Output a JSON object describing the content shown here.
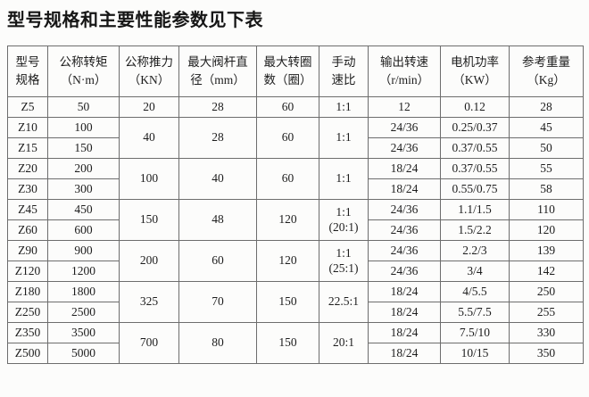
{
  "title": "型号规格和主要性能参数见下表",
  "table": {
    "columns": [
      {
        "label": "型号\n规格"
      },
      {
        "label": "公称转矩\n（N·m）"
      },
      {
        "label": "公称推力\n（KN）"
      },
      {
        "label": "最大阀杆直\n径（mm）"
      },
      {
        "label": "最大转圈\n数（圈）"
      },
      {
        "label": "手动\n速比"
      },
      {
        "label": "输出转速\n（r/min）"
      },
      {
        "label": "电机功率\n（KW）"
      },
      {
        "label": "参考重量\n（Kg）"
      }
    ],
    "rows": [
      {
        "cells": [
          {
            "t": "Z5"
          },
          {
            "t": "50"
          },
          {
            "t": "20"
          },
          {
            "t": "28"
          },
          {
            "t": "60"
          },
          {
            "t": "1:1"
          },
          {
            "t": "12"
          },
          {
            "t": "0.12"
          },
          {
            "t": "28"
          }
        ]
      },
      {
        "cells": [
          {
            "t": "Z10"
          },
          {
            "t": "100"
          },
          {
            "t": "40",
            "rs": 2
          },
          {
            "t": "28",
            "rs": 2
          },
          {
            "t": "60",
            "rs": 2
          },
          {
            "t": "1:1",
            "rs": 2
          },
          {
            "t": "24/36"
          },
          {
            "t": "0.25/0.37"
          },
          {
            "t": "45"
          }
        ]
      },
      {
        "cells": [
          {
            "t": "Z15"
          },
          {
            "t": "150"
          },
          {
            "t": "24/36"
          },
          {
            "t": "0.37/0.55"
          },
          {
            "t": "50"
          }
        ]
      },
      {
        "cells": [
          {
            "t": "Z20"
          },
          {
            "t": "200"
          },
          {
            "t": "100",
            "rs": 2
          },
          {
            "t": "40",
            "rs": 2
          },
          {
            "t": "60",
            "rs": 2
          },
          {
            "t": "1:1",
            "rs": 2
          },
          {
            "t": "18/24"
          },
          {
            "t": "0.37/0.55"
          },
          {
            "t": "55"
          }
        ]
      },
      {
        "cells": [
          {
            "t": "Z30"
          },
          {
            "t": "300"
          },
          {
            "t": "18/24"
          },
          {
            "t": "0.55/0.75"
          },
          {
            "t": "58"
          }
        ]
      },
      {
        "cells": [
          {
            "t": "Z45"
          },
          {
            "t": "450"
          },
          {
            "t": "150",
            "rs": 2
          },
          {
            "t": "48",
            "rs": 2
          },
          {
            "t": "120",
            "rs": 2
          },
          {
            "t": "1:1\n(20:1)",
            "rs": 2
          },
          {
            "t": "24/36"
          },
          {
            "t": "1.1/1.5"
          },
          {
            "t": "110"
          }
        ]
      },
      {
        "cells": [
          {
            "t": "Z60"
          },
          {
            "t": "600"
          },
          {
            "t": "24/36"
          },
          {
            "t": "1.5/2.2"
          },
          {
            "t": "120"
          }
        ]
      },
      {
        "cells": [
          {
            "t": "Z90"
          },
          {
            "t": "900"
          },
          {
            "t": "200",
            "rs": 2
          },
          {
            "t": "60",
            "rs": 2
          },
          {
            "t": "120",
            "rs": 2
          },
          {
            "t": "1:1\n(25:1)",
            "rs": 2
          },
          {
            "t": "24/36"
          },
          {
            "t": "2.2/3"
          },
          {
            "t": "139"
          }
        ]
      },
      {
        "cells": [
          {
            "t": "Z120"
          },
          {
            "t": "1200"
          },
          {
            "t": "24/36"
          },
          {
            "t": "3/4"
          },
          {
            "t": "142"
          }
        ]
      },
      {
        "cells": [
          {
            "t": "Z180"
          },
          {
            "t": "1800"
          },
          {
            "t": "325",
            "rs": 2
          },
          {
            "t": "70",
            "rs": 2
          },
          {
            "t": "150",
            "rs": 2
          },
          {
            "t": "22.5:1",
            "rs": 2
          },
          {
            "t": "18/24"
          },
          {
            "t": "4/5.5"
          },
          {
            "t": "250"
          }
        ]
      },
      {
        "cells": [
          {
            "t": "Z250"
          },
          {
            "t": "2500"
          },
          {
            "t": "18/24"
          },
          {
            "t": "5.5/7.5"
          },
          {
            "t": "255"
          }
        ]
      },
      {
        "cells": [
          {
            "t": "Z350"
          },
          {
            "t": "3500"
          },
          {
            "t": "700",
            "rs": 2
          },
          {
            "t": "80",
            "rs": 2
          },
          {
            "t": "150",
            "rs": 2
          },
          {
            "t": "20:1",
            "rs": 2
          },
          {
            "t": "18/24"
          },
          {
            "t": "7.5/10"
          },
          {
            "t": "330"
          }
        ]
      },
      {
        "cells": [
          {
            "t": "Z500"
          },
          {
            "t": "5000"
          },
          {
            "t": "18/24"
          },
          {
            "t": "10/15"
          },
          {
            "t": "350"
          }
        ]
      }
    ]
  },
  "colors": {
    "background": "#fcfcfb",
    "border": "#6d6d6d",
    "text": "#1d1d1d"
  }
}
